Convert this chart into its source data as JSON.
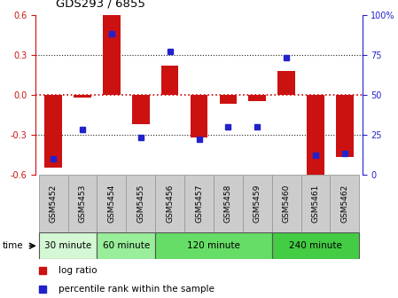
{
  "title": "GDS293 / 6855",
  "samples": [
    "GSM5452",
    "GSM5453",
    "GSM5454",
    "GSM5455",
    "GSM5456",
    "GSM5457",
    "GSM5458",
    "GSM5459",
    "GSM5460",
    "GSM5461",
    "GSM5462"
  ],
  "log_ratio": [
    -0.55,
    -0.02,
    0.6,
    -0.22,
    0.22,
    -0.32,
    -0.07,
    -0.05,
    0.18,
    -0.6,
    -0.47
  ],
  "percentile": [
    10,
    28,
    88,
    23,
    77,
    22,
    30,
    30,
    73,
    12,
    13
  ],
  "bar_color": "#cc1111",
  "dot_color": "#2222cc",
  "ylim": [
    -0.6,
    0.6
  ],
  "yticks_left": [
    -0.6,
    -0.3,
    0.0,
    0.3,
    0.6
  ],
  "yticks_right": [
    0,
    25,
    50,
    75,
    100
  ],
  "groups": [
    {
      "label": "30 minute",
      "start": 0,
      "end": 1,
      "color": "#d4f7d4"
    },
    {
      "label": "60 minute",
      "start": 2,
      "end": 3,
      "color": "#99ee99"
    },
    {
      "label": "120 minute",
      "start": 4,
      "end": 7,
      "color": "#66dd66"
    },
    {
      "label": "240 minute",
      "start": 8,
      "end": 10,
      "color": "#44cc44"
    }
  ],
  "hline_color": "#cc0000",
  "dotted_color": "#222222",
  "bg_color": "#ffffff",
  "tick_label_fontsize": 7,
  "bar_width": 0.6,
  "label_bg": "#cccccc",
  "label_edge": "#999999"
}
